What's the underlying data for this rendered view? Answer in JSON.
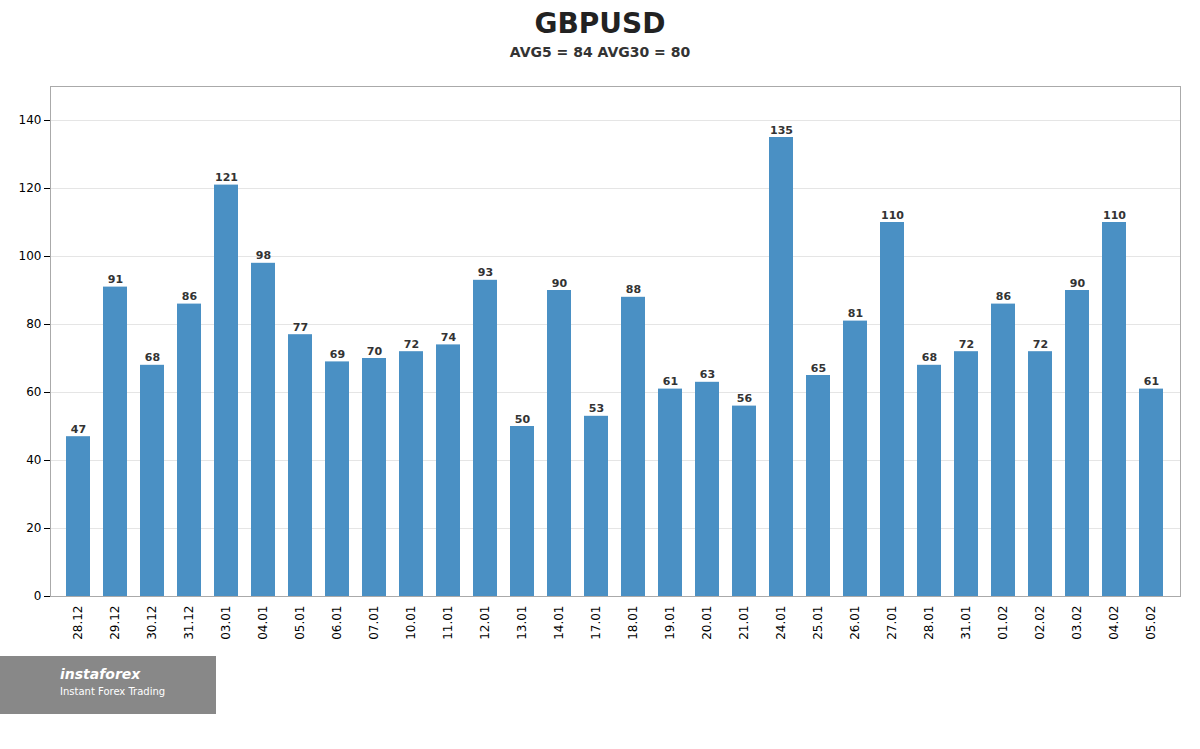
{
  "chart_data": {
    "type": "bar",
    "title": "GBPUSD",
    "subtitle": "AVG5 = 84 AVG30 = 80",
    "categories": [
      "28.12",
      "29.12",
      "30.12",
      "31.12",
      "03.01",
      "04.01",
      "05.01",
      "06.01",
      "07.01",
      "10.01",
      "11.01",
      "12.01",
      "13.01",
      "14.01",
      "17.01",
      "18.01",
      "19.01",
      "20.01",
      "21.01",
      "24.01",
      "25.01",
      "26.01",
      "27.01",
      "28.01",
      "31.01",
      "01.02",
      "02.02",
      "03.02",
      "04.02",
      "05.02"
    ],
    "values": [
      47,
      91,
      68,
      86,
      121,
      98,
      77,
      69,
      70,
      72,
      74,
      93,
      50,
      90,
      53,
      88,
      61,
      63,
      56,
      135,
      65,
      81,
      110,
      68,
      72,
      86,
      72,
      90,
      110,
      61
    ],
    "color": "#4a90c4",
    "ylim": [
      0,
      150
    ],
    "yticks": [
      0,
      20,
      40,
      60,
      80,
      100,
      120,
      140
    ],
    "grid": true,
    "data_labels": true,
    "annotations": [
      "instaforex",
      "Instant Forex Trading"
    ]
  }
}
